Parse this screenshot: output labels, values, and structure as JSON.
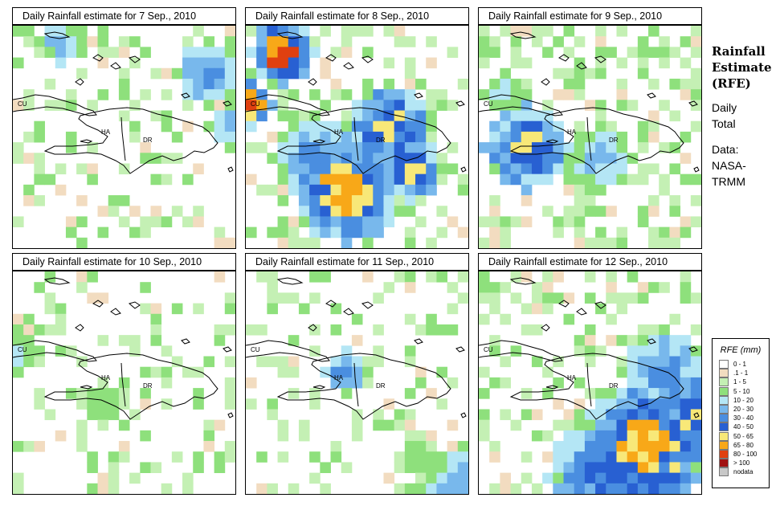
{
  "panels": [
    {
      "title": "Daily Rainfall estimate for  7 Sep., 2010"
    },
    {
      "title": "Daily Rainfall estimate for  8 Sep., 2010"
    },
    {
      "title": "Daily Rainfall estimate for  9 Sep., 2010"
    },
    {
      "title": "Daily Rainfall estimate for  10 Sep., 2010"
    },
    {
      "title": "Daily Rainfall estimate for  11 Sep., 2010"
    },
    {
      "title": "Daily Rainfall estimate for  12 Sep., 2010"
    }
  ],
  "map_labels": {
    "cuba": "CU",
    "haiti": "HA",
    "dominican_republic": "DR"
  },
  "side": {
    "title_line1": "Rainfall",
    "title_line2": "Estimate",
    "title_line3": "(RFE)",
    "daily": "Daily",
    "total": "Total",
    "data_label": "Data:",
    "source_line1": "NASA-",
    "source_line2": "TRMM"
  },
  "legend": {
    "title": "RFE (mm)",
    "items": [
      {
        "label": "0 - 1",
        "color": "#ffffff"
      },
      {
        "label": ".1 - 1",
        "color": "#f2dcc0"
      },
      {
        "label": "1 - 5",
        "color": "#c4f0b4"
      },
      {
        "label": "5 - 10",
        "color": "#8ee07c"
      },
      {
        "label": "10 - 20",
        "color": "#b4e6f5"
      },
      {
        "label": "20 - 30",
        "color": "#78b8ec"
      },
      {
        "label": "30 - 40",
        "color": "#4a8ee0"
      },
      {
        "label": "40 - 50",
        "color": "#2860d2"
      },
      {
        "label": "50 - 65",
        "color": "#f8e878"
      },
      {
        "label": "65 - 80",
        "color": "#f8a818"
      },
      {
        "label": "80 - 100",
        "color": "#e04010"
      },
      {
        "label": "> 100",
        "color": "#a01010"
      },
      {
        "label": "nodata",
        "color": "#c8c8c8"
      }
    ]
  }
}
